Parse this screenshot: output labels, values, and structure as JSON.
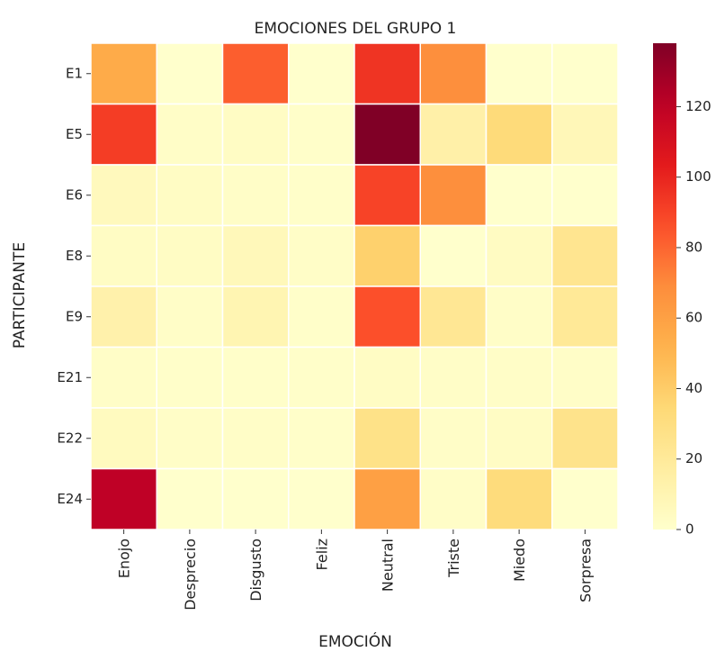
{
  "chart_data": {
    "type": "heatmap",
    "title": "EMOCIONES DEL GRUPO 1",
    "xlabel": "EMOCIÓN",
    "ylabel": "PARTICIPANTE",
    "x_categories": [
      "Enojo",
      "Desprecio",
      "Disgusto",
      "Feliz",
      "Neutral",
      "Triste",
      "Miedo",
      "Sorpresa"
    ],
    "y_categories": [
      "E1",
      "E5",
      "E6",
      "E8",
      "E9",
      "E21",
      "E22",
      "E24"
    ],
    "values": [
      [
        55,
        0,
        82,
        0,
        95,
        68,
        0,
        0
      ],
      [
        92,
        2,
        3,
        1,
        138,
        14,
        33,
        8
      ],
      [
        6,
        3,
        2,
        1,
        90,
        68,
        0,
        0
      ],
      [
        3,
        3,
        7,
        2,
        38,
        0,
        4,
        24
      ],
      [
        13,
        2,
        10,
        1,
        86,
        22,
        2,
        21
      ],
      [
        2,
        1,
        1,
        1,
        3,
        2,
        2,
        2
      ],
      [
        5,
        2,
        2,
        1,
        27,
        2,
        3,
        26
      ],
      [
        120,
        0,
        0,
        0,
        60,
        2,
        32,
        0
      ]
    ],
    "colorbar": {
      "min": 0,
      "max": 138,
      "ticks": [
        0,
        20,
        40,
        60,
        80,
        100,
        120
      ],
      "colormap": "YlOrRd"
    }
  }
}
